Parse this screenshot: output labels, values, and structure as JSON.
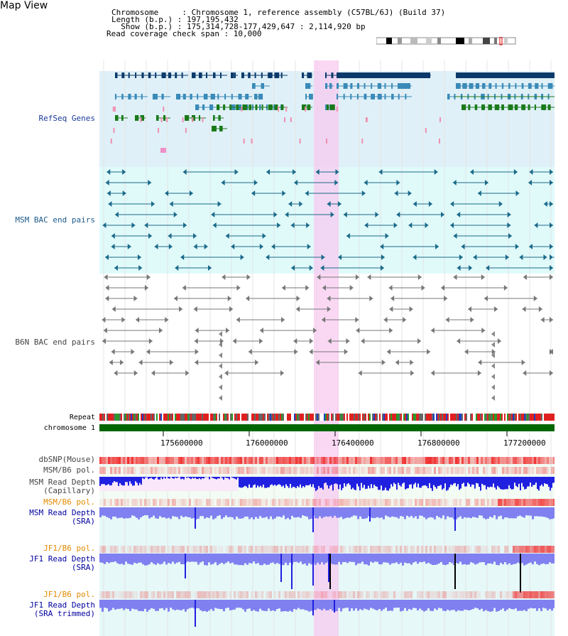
{
  "page": {
    "title": "Map View"
  },
  "header": {
    "chromosome_line": "Chromosome     : Chromosome 1, reference assembly (C57BL/6J) (Build 37)",
    "length_line": "Length (b.p.) : 197,195,432",
    "show_line": "  Show (b.p.) : 175,314,728-177,429,647 : 2,114,920 bp",
    "coverage_line": "Read coverage check span : 10,000"
  },
  "tracks": {
    "refseq": "RefSeq Genes",
    "msm_bac": "MSM BAC end pairs",
    "b6n_bac": "B6N BAC end pairs",
    "repeat": "Repeat",
    "chromosome": "chromosome 1",
    "dbsnp": "dbSNP(Mouse)",
    "msm_b6_pol_1": "MSM/B6 pol.",
    "msm_read_depth_cap_1": "MSM Read Depth",
    "msm_read_depth_cap_2": "(Capillary)",
    "msm_b6_pol_2": "MSM/B6 pol.",
    "msm_read_depth_sra_1": "MSM Read Depth",
    "msm_read_depth_sra_2": "(SRA)",
    "jf1_b6_pol_1": "JF1/B6 pol.",
    "jf1_read_depth_sra_1": "JF1 Read Depth",
    "jf1_read_depth_sra_2": "(SRA)",
    "jf1_b6_pol_2": "JF1/B6 pol.",
    "jf1_read_depth_trim_1": "JF1 Read Depth",
    "jf1_read_depth_trim_2": "(SRA trimmed)"
  },
  "axis": {
    "ticks": [
      "175600000",
      "176000000",
      "176400000",
      "176800000",
      "177200000"
    ]
  },
  "colors": {
    "refseq_bg": "#dff0f8",
    "msm_bg": "#e0fafa",
    "highlight": "#f8c8f0",
    "chromosome_bar": "#006600",
    "gene_dark": "#0b3a6a",
    "gene_mid": "#3a8ab8",
    "gene_green": "#1a7a1a",
    "depth_blue": "#2020e0",
    "depth_light": "#8080f0",
    "snp_red": "#f03030"
  }
}
